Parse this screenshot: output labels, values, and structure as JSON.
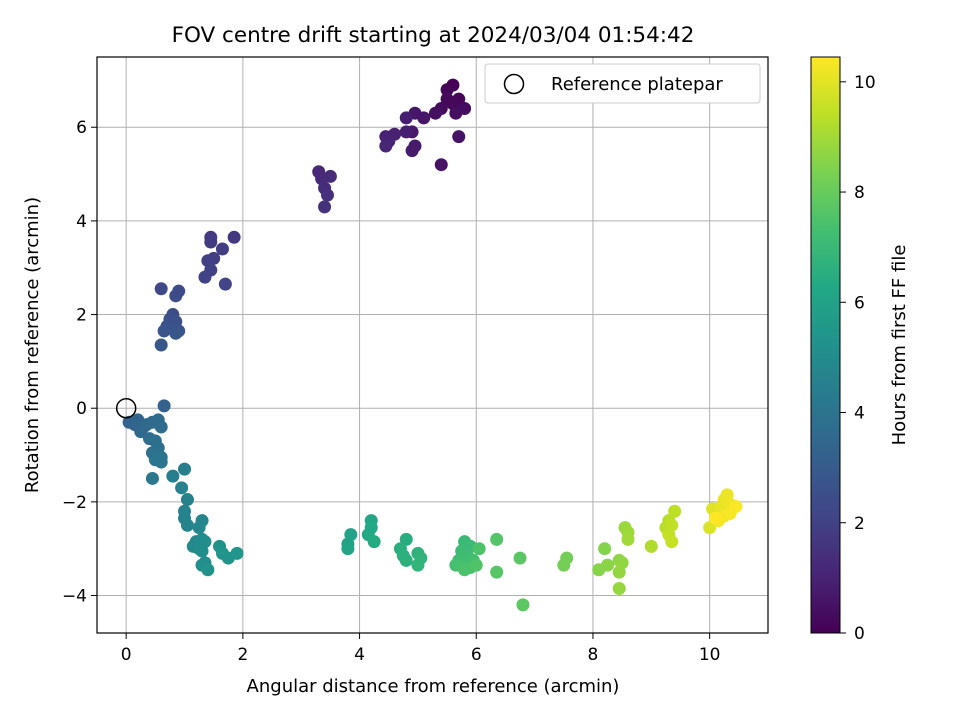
{
  "chart_data": {
    "type": "scatter",
    "title": "FOV centre drift starting at 2024/03/04 01:54:42",
    "xlabel": "Angular distance from reference (arcmin)",
    "ylabel": "Rotation from reference (arcmin)",
    "xlim": [
      -0.5,
      11
    ],
    "ylim": [
      -4.8,
      7.5
    ],
    "xticks": [
      0,
      2,
      4,
      6,
      8,
      10
    ],
    "yticks": [
      -4,
      -2,
      0,
      2,
      4,
      6
    ],
    "grid": true,
    "legend": {
      "position": "top-right",
      "entries": [
        "Reference platepar"
      ]
    },
    "reference_point": {
      "x": 0,
      "y": 0
    },
    "colorbar": {
      "label": "Hours from first FF file",
      "colormap": "viridis",
      "range": [
        0,
        10.45
      ],
      "ticks": [
        0,
        2,
        4,
        6,
        8,
        10
      ]
    },
    "series": [
      {
        "color_by": "hours",
        "points": [
          {
            "x": 5.6,
            "y": 6.9,
            "c": 0.05
          },
          {
            "x": 5.5,
            "y": 6.8,
            "c": 0.1
          },
          {
            "x": 5.7,
            "y": 6.6,
            "c": 0.15
          },
          {
            "x": 5.6,
            "y": 6.5,
            "c": 0.2
          },
          {
            "x": 5.5,
            "y": 6.6,
            "c": 0.25
          },
          {
            "x": 5.4,
            "y": 6.4,
            "c": 0.3
          },
          {
            "x": 5.8,
            "y": 6.4,
            "c": 0.35
          },
          {
            "x": 5.65,
            "y": 6.3,
            "c": 0.4
          },
          {
            "x": 5.3,
            "y": 6.3,
            "c": 0.45
          },
          {
            "x": 5.7,
            "y": 5.8,
            "c": 0.5
          },
          {
            "x": 5.4,
            "y": 5.2,
            "c": 0.55
          },
          {
            "x": 5.1,
            "y": 6.2,
            "c": 0.6
          },
          {
            "x": 4.95,
            "y": 6.3,
            "c": 0.65
          },
          {
            "x": 4.9,
            "y": 5.9,
            "c": 0.7
          },
          {
            "x": 4.95,
            "y": 5.6,
            "c": 0.75
          },
          {
            "x": 4.9,
            "y": 5.5,
            "c": 0.8
          },
          {
            "x": 4.8,
            "y": 6.2,
            "c": 0.85
          },
          {
            "x": 4.8,
            "y": 5.9,
            "c": 0.9
          },
          {
            "x": 4.6,
            "y": 5.85,
            "c": 0.95
          },
          {
            "x": 4.45,
            "y": 5.8,
            "c": 1.0
          },
          {
            "x": 4.5,
            "y": 5.7,
            "c": 1.05
          },
          {
            "x": 4.45,
            "y": 5.6,
            "c": 1.1
          },
          {
            "x": 3.3,
            "y": 5.05,
            "c": 1.2
          },
          {
            "x": 3.35,
            "y": 4.9,
            "c": 1.25
          },
          {
            "x": 3.5,
            "y": 4.95,
            "c": 1.3
          },
          {
            "x": 3.4,
            "y": 4.7,
            "c": 1.35
          },
          {
            "x": 3.45,
            "y": 4.55,
            "c": 1.4
          },
          {
            "x": 3.4,
            "y": 4.3,
            "c": 1.45
          },
          {
            "x": 1.85,
            "y": 3.65,
            "c": 1.7
          },
          {
            "x": 1.45,
            "y": 3.65,
            "c": 1.75
          },
          {
            "x": 1.45,
            "y": 3.55,
            "c": 1.8
          },
          {
            "x": 1.65,
            "y": 3.4,
            "c": 1.85
          },
          {
            "x": 1.5,
            "y": 3.2,
            "c": 1.9
          },
          {
            "x": 1.4,
            "y": 3.15,
            "c": 1.95
          },
          {
            "x": 1.45,
            "y": 2.95,
            "c": 2.0
          },
          {
            "x": 1.35,
            "y": 2.8,
            "c": 2.05
          },
          {
            "x": 1.7,
            "y": 2.65,
            "c": 2.1
          },
          {
            "x": 0.6,
            "y": 2.55,
            "c": 2.3
          },
          {
            "x": 0.9,
            "y": 2.5,
            "c": 2.35
          },
          {
            "x": 0.85,
            "y": 2.4,
            "c": 2.4
          },
          {
            "x": 0.8,
            "y": 2.0,
            "c": 2.45
          },
          {
            "x": 0.75,
            "y": 1.9,
            "c": 2.5
          },
          {
            "x": 0.85,
            "y": 1.85,
            "c": 2.55
          },
          {
            "x": 0.7,
            "y": 1.75,
            "c": 2.6
          },
          {
            "x": 0.8,
            "y": 1.7,
            "c": 2.65
          },
          {
            "x": 0.9,
            "y": 1.65,
            "c": 2.7
          },
          {
            "x": 0.65,
            "y": 1.65,
            "c": 2.75
          },
          {
            "x": 0.85,
            "y": 1.6,
            "c": 2.8
          },
          {
            "x": 0.6,
            "y": 1.35,
            "c": 2.85
          },
          {
            "x": 0.65,
            "y": 0.05,
            "c": 3.2
          },
          {
            "x": 0.05,
            "y": -0.3,
            "c": 3.3
          },
          {
            "x": 0.15,
            "y": -0.35,
            "c": 3.35
          },
          {
            "x": 0.2,
            "y": -0.25,
            "c": 3.4
          },
          {
            "x": 0.3,
            "y": -0.4,
            "c": 3.45
          },
          {
            "x": 0.25,
            "y": -0.5,
            "c": 3.5
          },
          {
            "x": 0.35,
            "y": -0.35,
            "c": 3.55
          },
          {
            "x": 0.45,
            "y": -0.3,
            "c": 3.6
          },
          {
            "x": 0.55,
            "y": -0.25,
            "c": 3.65
          },
          {
            "x": 0.6,
            "y": -0.4,
            "c": 3.7
          },
          {
            "x": 0.4,
            "y": -0.65,
            "c": 3.75
          },
          {
            "x": 0.5,
            "y": -0.7,
            "c": 3.8
          },
          {
            "x": 0.55,
            "y": -0.85,
            "c": 3.85
          },
          {
            "x": 0.45,
            "y": -0.95,
            "c": 3.9
          },
          {
            "x": 0.55,
            "y": -1.0,
            "c": 3.95
          },
          {
            "x": 0.6,
            "y": -1.05,
            "c": 4.0
          },
          {
            "x": 0.5,
            "y": -1.1,
            "c": 4.05
          },
          {
            "x": 0.6,
            "y": -1.15,
            "c": 4.1
          },
          {
            "x": 0.45,
            "y": -1.5,
            "c": 4.15
          },
          {
            "x": 0.8,
            "y": -1.45,
            "c": 4.4
          },
          {
            "x": 1.0,
            "y": -1.3,
            "c": 4.45
          },
          {
            "x": 0.95,
            "y": -1.7,
            "c": 4.5
          },
          {
            "x": 1.05,
            "y": -1.95,
            "c": 4.55
          },
          {
            "x": 1.0,
            "y": -2.2,
            "c": 4.6
          },
          {
            "x": 1.0,
            "y": -2.35,
            "c": 4.65
          },
          {
            "x": 1.05,
            "y": -2.5,
            "c": 4.7
          },
          {
            "x": 1.3,
            "y": -2.4,
            "c": 4.75
          },
          {
            "x": 1.25,
            "y": -2.55,
            "c": 4.8
          },
          {
            "x": 1.2,
            "y": -2.85,
            "c": 4.85
          },
          {
            "x": 1.15,
            "y": -2.95,
            "c": 4.9
          },
          {
            "x": 1.3,
            "y": -2.8,
            "c": 4.95
          },
          {
            "x": 1.35,
            "y": -2.85,
            "c": 5.0
          },
          {
            "x": 1.25,
            "y": -3.0,
            "c": 5.05
          },
          {
            "x": 1.3,
            "y": -3.05,
            "c": 5.1
          },
          {
            "x": 1.35,
            "y": -3.3,
            "c": 5.15
          },
          {
            "x": 1.3,
            "y": -3.35,
            "c": 5.2
          },
          {
            "x": 1.4,
            "y": -3.45,
            "c": 5.25
          },
          {
            "x": 1.6,
            "y": -2.95,
            "c": 5.3
          },
          {
            "x": 1.65,
            "y": -3.1,
            "c": 5.35
          },
          {
            "x": 1.75,
            "y": -3.2,
            "c": 5.4
          },
          {
            "x": 1.9,
            "y": -3.1,
            "c": 5.45
          },
          {
            "x": 3.85,
            "y": -2.7,
            "c": 6.0
          },
          {
            "x": 3.8,
            "y": -2.9,
            "c": 6.05
          },
          {
            "x": 3.8,
            "y": -3.0,
            "c": 6.1
          },
          {
            "x": 4.2,
            "y": -2.4,
            "c": 6.2
          },
          {
            "x": 4.2,
            "y": -2.55,
            "c": 6.25
          },
          {
            "x": 4.15,
            "y": -2.7,
            "c": 6.3
          },
          {
            "x": 4.25,
            "y": -2.85,
            "c": 6.35
          },
          {
            "x": 4.8,
            "y": -2.8,
            "c": 6.5
          },
          {
            "x": 4.7,
            "y": -3.0,
            "c": 6.55
          },
          {
            "x": 4.75,
            "y": -3.15,
            "c": 6.6
          },
          {
            "x": 4.8,
            "y": -3.25,
            "c": 6.65
          },
          {
            "x": 5.0,
            "y": -3.1,
            "c": 6.7
          },
          {
            "x": 5.05,
            "y": -3.2,
            "c": 6.75
          },
          {
            "x": 5.0,
            "y": -3.35,
            "c": 6.8
          },
          {
            "x": 5.8,
            "y": -2.85,
            "c": 7.0
          },
          {
            "x": 5.9,
            "y": -2.95,
            "c": 7.05
          },
          {
            "x": 5.75,
            "y": -3.05,
            "c": 7.1
          },
          {
            "x": 5.85,
            "y": -3.15,
            "c": 7.15
          },
          {
            "x": 5.7,
            "y": -3.25,
            "c": 7.2
          },
          {
            "x": 5.95,
            "y": -3.25,
            "c": 7.25
          },
          {
            "x": 5.8,
            "y": -3.35,
            "c": 7.3
          },
          {
            "x": 5.65,
            "y": -3.35,
            "c": 7.35
          },
          {
            "x": 5.9,
            "y": -3.4,
            "c": 7.4
          },
          {
            "x": 5.8,
            "y": -3.45,
            "c": 7.45
          },
          {
            "x": 6.05,
            "y": -3.0,
            "c": 7.5
          },
          {
            "x": 6.0,
            "y": -3.35,
            "c": 7.55
          },
          {
            "x": 6.35,
            "y": -2.8,
            "c": 7.6
          },
          {
            "x": 6.35,
            "y": -3.5,
            "c": 7.65
          },
          {
            "x": 6.75,
            "y": -3.2,
            "c": 7.75
          },
          {
            "x": 6.8,
            "y": -4.2,
            "c": 7.8
          },
          {
            "x": 7.55,
            "y": -3.2,
            "c": 8.2
          },
          {
            "x": 7.5,
            "y": -3.35,
            "c": 8.25
          },
          {
            "x": 8.2,
            "y": -3.0,
            "c": 8.5
          },
          {
            "x": 8.1,
            "y": -3.45,
            "c": 8.55
          },
          {
            "x": 8.25,
            "y": -3.35,
            "c": 8.6
          },
          {
            "x": 8.45,
            "y": -3.25,
            "c": 8.65
          },
          {
            "x": 8.5,
            "y": -3.3,
            "c": 8.7
          },
          {
            "x": 8.45,
            "y": -3.5,
            "c": 8.75
          },
          {
            "x": 8.45,
            "y": -3.85,
            "c": 8.8
          },
          {
            "x": 8.55,
            "y": -2.55,
            "c": 8.85
          },
          {
            "x": 8.6,
            "y": -2.65,
            "c": 8.9
          },
          {
            "x": 8.6,
            "y": -2.8,
            "c": 8.95
          },
          {
            "x": 9.0,
            "y": -2.95,
            "c": 9.2
          },
          {
            "x": 9.25,
            "y": -2.55,
            "c": 9.3
          },
          {
            "x": 9.3,
            "y": -2.4,
            "c": 9.35
          },
          {
            "x": 9.4,
            "y": -2.2,
            "c": 9.4
          },
          {
            "x": 9.35,
            "y": -2.5,
            "c": 9.45
          },
          {
            "x": 9.3,
            "y": -2.7,
            "c": 9.5
          },
          {
            "x": 9.35,
            "y": -2.85,
            "c": 9.55
          },
          {
            "x": 10.0,
            "y": -2.55,
            "c": 9.9
          },
          {
            "x": 10.05,
            "y": -2.15,
            "c": 9.95
          },
          {
            "x": 10.15,
            "y": -2.25,
            "c": 10.0
          },
          {
            "x": 10.2,
            "y": -2.1,
            "c": 10.05
          },
          {
            "x": 10.25,
            "y": -1.95,
            "c": 10.1
          },
          {
            "x": 10.3,
            "y": -1.85,
            "c": 10.15
          },
          {
            "x": 10.35,
            "y": -2.05,
            "c": 10.2
          },
          {
            "x": 10.25,
            "y": -2.3,
            "c": 10.25
          },
          {
            "x": 10.15,
            "y": -2.4,
            "c": 10.3
          },
          {
            "x": 10.35,
            "y": -2.25,
            "c": 10.35
          },
          {
            "x": 10.45,
            "y": -2.1,
            "c": 10.4
          },
          {
            "x": 10.1,
            "y": -2.35,
            "c": 10.45
          }
        ]
      }
    ]
  }
}
